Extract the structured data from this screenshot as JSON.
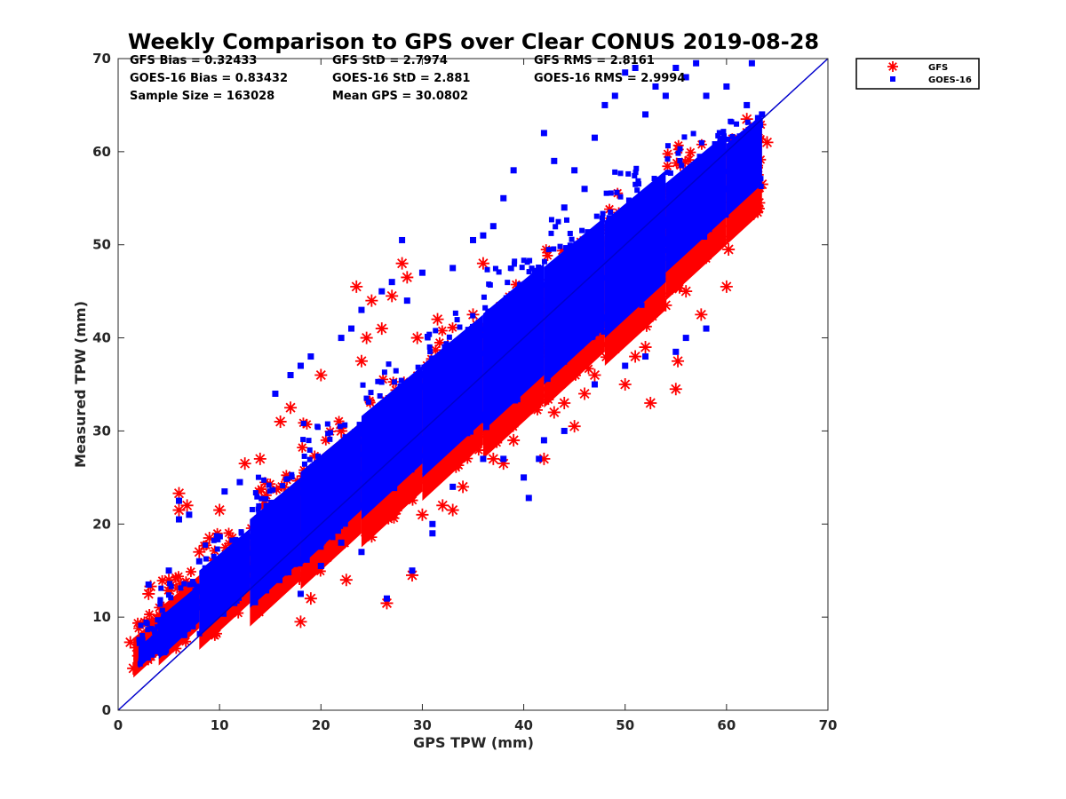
{
  "chart_data": {
    "type": "scatter",
    "title": "Weekly Comparison to GPS over Clear CONUS 2019-08-28",
    "xlabel": "GPS TPW (mm)",
    "ylabel": "Measured TPW (mm)",
    "xlim": [
      0,
      70
    ],
    "ylim": [
      0,
      70
    ],
    "xticks": [
      "0",
      "10",
      "20",
      "30",
      "40",
      "50",
      "60",
      "70"
    ],
    "yticks": [
      "0",
      "10",
      "20",
      "30",
      "40",
      "50",
      "60",
      "70"
    ],
    "grid": false,
    "legend_placement": "outside-top-right",
    "reference_line": {
      "x": [
        0,
        70
      ],
      "y": [
        0,
        70
      ],
      "color": "#0000cc"
    },
    "stats": [
      [
        "GFS Bias = 0.32433",
        "GFS StD = 2.7974",
        "GFS RMS = 2.8161"
      ],
      [
        "GOES-16 Bias = 0.83432",
        "GOES-16 StD = 2.881",
        "GOES-16 RMS = 2.9994"
      ],
      [
        "Sample Size = 163028",
        "Mean GPS = 30.0802",
        ""
      ]
    ],
    "series": [
      {
        "name": "GFS",
        "marker": "asterisk",
        "color": "#ff0000",
        "points": [
          [
            1.2,
            7.3
          ],
          [
            1.5,
            4.5
          ],
          [
            2.2,
            6
          ],
          [
            3,
            12.5
          ],
          [
            3.2,
            13.3
          ],
          [
            4.5,
            11
          ],
          [
            5,
            14
          ],
          [
            6,
            23.3
          ],
          [
            6,
            21.5
          ],
          [
            6.8,
            22
          ],
          [
            8,
            17
          ],
          [
            9,
            18.5
          ],
          [
            10,
            21.5
          ],
          [
            12.5,
            26.5
          ],
          [
            14,
            27
          ],
          [
            16,
            31
          ],
          [
            17,
            32.5
          ],
          [
            18,
            9.5
          ],
          [
            18.2,
            14.5
          ],
          [
            19,
            12
          ],
          [
            20,
            36
          ],
          [
            22,
            30
          ],
          [
            22.5,
            14
          ],
          [
            23.5,
            45.5
          ],
          [
            24,
            37.5
          ],
          [
            24.5,
            40
          ],
          [
            25,
            44
          ],
          [
            26,
            41
          ],
          [
            26.5,
            11.5
          ],
          [
            27,
            44.5
          ],
          [
            28,
            48
          ],
          [
            28.5,
            46.5
          ],
          [
            29,
            14.5
          ],
          [
            29.5,
            40
          ],
          [
            30,
            21
          ],
          [
            31.5,
            42
          ],
          [
            32,
            22
          ],
          [
            33,
            21.5
          ],
          [
            35,
            42.5
          ],
          [
            36,
            48
          ],
          [
            37,
            27
          ],
          [
            38,
            26.5
          ],
          [
            39,
            29
          ],
          [
            40,
            33.5
          ],
          [
            42,
            27
          ],
          [
            44,
            33
          ],
          [
            45,
            30.5
          ],
          [
            47,
            36
          ],
          [
            48,
            41
          ],
          [
            49,
            40
          ],
          [
            50,
            35
          ],
          [
            51,
            38
          ],
          [
            52,
            39
          ],
          [
            52.5,
            33
          ],
          [
            53,
            43
          ],
          [
            54,
            43.5
          ],
          [
            55,
            34.5
          ],
          [
            55.2,
            37.5
          ],
          [
            56,
            45
          ],
          [
            56.5,
            48
          ],
          [
            57,
            49
          ],
          [
            57.5,
            42.5
          ],
          [
            58,
            51.5
          ],
          [
            59,
            56
          ],
          [
            59.5,
            52
          ],
          [
            60,
            45.5
          ],
          [
            60.2,
            49.5
          ],
          [
            61,
            54
          ],
          [
            61.5,
            58
          ],
          [
            62,
            63.5
          ],
          [
            62.5,
            60
          ],
          [
            63,
            58.5
          ],
          [
            63.5,
            56.5
          ],
          [
            64,
            61
          ],
          [
            63.2,
            54.5
          ],
          [
            58.2,
            55
          ],
          [
            54,
            50.5
          ],
          [
            46,
            34
          ],
          [
            43,
            32
          ],
          [
            34,
            24
          ]
        ],
        "bands": [
          {
            "x": [
              1.5,
              4
            ],
            "lo": 3.5,
            "hi": 10,
            "n": 25
          },
          {
            "x": [
              4,
              8
            ],
            "lo": 4.8,
            "hi": 14.5,
            "n": 35
          },
          {
            "x": [
              8,
              13
            ],
            "lo": 6.5,
            "hi": 19,
            "n": 40
          },
          {
            "x": [
              13,
              18
            ],
            "lo": 9,
            "hi": 25,
            "n": 45
          },
          {
            "x": [
              18,
              24
            ],
            "lo": 13,
            "hi": 31,
            "n": 50
          },
          {
            "x": [
              24,
              30
            ],
            "lo": 17.5,
            "hi": 36,
            "n": 55
          },
          {
            "x": [
              30,
              36
            ],
            "lo": 22.5,
            "hi": 41,
            "n": 55
          },
          {
            "x": [
              36,
              42
            ],
            "lo": 27,
            "hi": 46,
            "n": 55
          },
          {
            "x": [
              42,
              48
            ],
            "lo": 32.5,
            "hi": 51,
            "n": 55
          },
          {
            "x": [
              48,
              54
            ],
            "lo": 37,
            "hi": 56,
            "n": 55
          },
          {
            "x": [
              54,
              60
            ],
            "lo": 44,
            "hi": 61,
            "n": 60
          },
          {
            "x": [
              60,
              63.5
            ],
            "lo": 50,
            "hi": 63,
            "n": 35
          }
        ]
      },
      {
        "name": "GOES-16",
        "marker": "square",
        "color": "#0000ff",
        "points": [
          [
            3,
            13.5
          ],
          [
            5,
            15
          ],
          [
            6,
            22.5
          ],
          [
            6,
            20.5
          ],
          [
            7,
            21
          ],
          [
            8,
            16
          ],
          [
            10.5,
            23.5
          ],
          [
            12,
            24.5
          ],
          [
            15.5,
            34
          ],
          [
            17,
            36
          ],
          [
            18,
            37
          ],
          [
            19,
            38
          ],
          [
            22,
            40
          ],
          [
            23,
            41
          ],
          [
            24,
            43
          ],
          [
            26,
            45
          ],
          [
            27,
            46
          ],
          [
            28,
            50.5
          ],
          [
            28.5,
            44
          ],
          [
            29,
            15
          ],
          [
            30,
            47
          ],
          [
            31,
            19
          ],
          [
            33,
            47.5
          ],
          [
            35,
            50.5
          ],
          [
            36,
            51
          ],
          [
            37,
            52
          ],
          [
            38,
            55
          ],
          [
            39,
            58
          ],
          [
            40.5,
            22.8
          ],
          [
            41.5,
            27
          ],
          [
            42,
            62
          ],
          [
            43,
            59
          ],
          [
            44,
            54
          ],
          [
            45,
            58
          ],
          [
            46,
            56
          ],
          [
            47,
            61.5
          ],
          [
            48,
            65
          ],
          [
            49,
            66
          ],
          [
            50,
            68.5
          ],
          [
            51,
            69
          ],
          [
            52,
            64
          ],
          [
            53,
            67
          ],
          [
            54,
            66
          ],
          [
            55,
            69
          ],
          [
            56,
            68
          ],
          [
            57,
            69.5
          ],
          [
            58,
            66
          ],
          [
            60,
            67
          ],
          [
            62,
            65
          ],
          [
            62.5,
            69.5
          ],
          [
            63.5,
            64
          ],
          [
            63,
            62
          ],
          [
            58,
            41
          ],
          [
            56,
            40
          ],
          [
            55,
            38.5
          ],
          [
            52,
            38
          ],
          [
            50,
            37
          ],
          [
            47,
            35
          ],
          [
            44,
            30
          ],
          [
            42,
            29
          ],
          [
            40,
            25
          ],
          [
            38,
            27
          ],
          [
            36,
            27
          ],
          [
            33,
            24
          ],
          [
            31,
            20
          ],
          [
            26.5,
            12
          ],
          [
            24,
            17
          ],
          [
            22,
            18
          ],
          [
            20,
            15.5
          ],
          [
            18,
            12.5
          ]
        ],
        "bands": [
          {
            "x": [
              2,
              5
            ],
            "lo": 4.5,
            "hi": 9.5,
            "n": 45
          },
          {
            "x": [
              4,
              8
            ],
            "lo": 5.5,
            "hi": 13.5,
            "n": 60
          },
          {
            "x": [
              8,
              13
            ],
            "lo": 8,
            "hi": 19.5,
            "n": 70
          },
          {
            "x": [
              13,
              18
            ],
            "lo": 11,
            "hi": 25,
            "n": 70
          },
          {
            "x": [
              18,
              24
            ],
            "lo": 15.5,
            "hi": 31,
            "n": 75
          },
          {
            "x": [
              24,
              30
            ],
            "lo": 20.5,
            "hi": 37,
            "n": 75
          },
          {
            "x": [
              30,
              36
            ],
            "lo": 25,
            "hi": 42.5,
            "n": 75
          },
          {
            "x": [
              36,
              42
            ],
            "lo": 30,
            "hi": 48,
            "n": 75
          },
          {
            "x": [
              42,
              48
            ],
            "lo": 35,
            "hi": 53,
            "n": 75
          },
          {
            "x": [
              48,
              54
            ],
            "lo": 40,
            "hi": 58,
            "n": 75
          },
          {
            "x": [
              54,
              60
            ],
            "lo": 47,
            "hi": 62,
            "n": 70
          },
          {
            "x": [
              60,
              63.5
            ],
            "lo": 53,
            "hi": 64,
            "n": 30
          }
        ]
      }
    ]
  }
}
